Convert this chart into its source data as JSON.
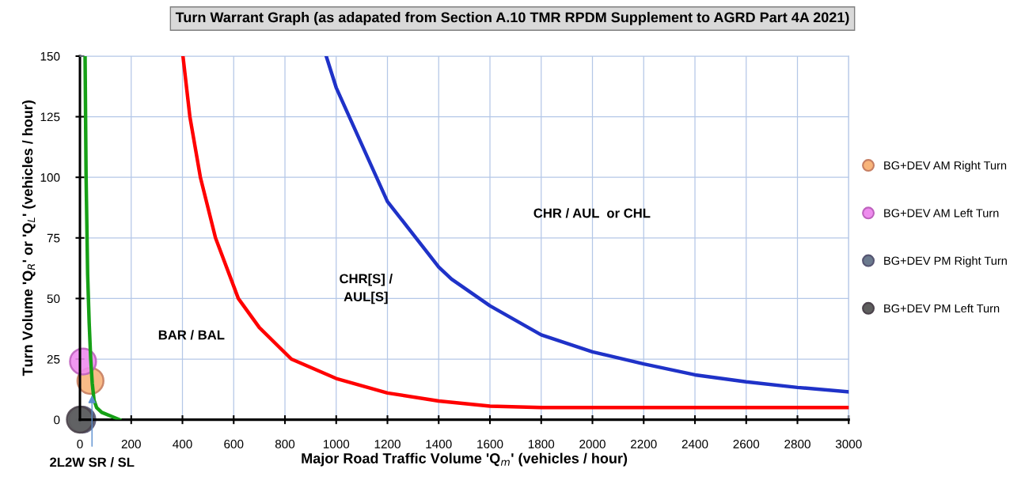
{
  "chart_data": {
    "type": "line",
    "title": "Turn Warrant Graph (as adapated from Section A.10 TMR RPDM Supplement to AGRD Part 4A 2021)",
    "xlabel": "Major Road Traffic Volume 'Q$_{m}$' (vehicles / hour)",
    "ylabel": "Turn Volume 'Q$_{R}$' or 'Q$_{L}$' (vehicles / hour)",
    "xlim": [
      0,
      3000
    ],
    "xticks": [
      0,
      200,
      400,
      600,
      800,
      1000,
      1200,
      1400,
      1600,
      1800,
      2000,
      2200,
      2400,
      2600,
      2800,
      3000
    ],
    "ylim": [
      0,
      150
    ],
    "yticks": [
      0,
      25,
      50,
      75,
      100,
      125,
      150
    ],
    "grid": true,
    "legend": "right",
    "line_style": "solid",
    "series": [
      {
        "color": "#16a016",
        "x": [
          20,
          24,
          30,
          36,
          42,
          48,
          55,
          65,
          85,
          120,
          155
        ],
        "values": [
          150,
          100,
          60,
          40,
          25,
          15,
          8,
          5,
          3,
          1.5,
          0
        ]
      },
      {
        "color": "#ff0000",
        "x": [
          402,
          429,
          470,
          529,
          618,
          700,
          825,
          1000,
          1200,
          1400,
          1600,
          1800,
          2000,
          2500,
          3000
        ],
        "values": [
          150,
          125,
          100,
          75,
          50,
          38,
          25,
          17,
          11,
          7.7,
          5.6,
          5,
          5,
          5,
          5
        ]
      },
      {
        "color": "#1f32c8",
        "x": [
          961,
          1000,
          1200,
          1400,
          1450,
          1600,
          1800,
          2000,
          2200,
          2400,
          2600,
          2800,
          3000
        ],
        "values": [
          150,
          137,
          90,
          63,
          58,
          47,
          35,
          28,
          23,
          18.5,
          15.6,
          13.3,
          11.5
        ]
      },
      {
        "type": "scatter",
        "name": "BG+DEV AM Right Turn",
        "color": "#f8b47a",
        "marker": "circle",
        "x": [
          41
        ],
        "values": [
          16
        ]
      },
      {
        "type": "scatter",
        "name": "BG+DEV AM Left Turn",
        "color": "#ee8cee",
        "marker": "circle",
        "x": [
          12
        ],
        "values": [
          24
        ]
      },
      {
        "type": "scatter",
        "name": "BG+DEV PM Right Turn",
        "color": "#6b7a8e",
        "marker": "circle",
        "x": [
          9
        ],
        "values": [
          0
        ]
      },
      {
        "type": "scatter",
        "name": "BG+DEV PM Left Turn",
        "color": "#5e5e5e",
        "marker": "circle",
        "x": [
          0
        ],
        "values": [
          0
        ]
      }
    ],
    "annotations": [
      "BAR / BAL",
      "CHR[S] /\nAUL[S]",
      "CHR / AUL  or CHL",
      {
        "text": "2L2W SR / SL",
        "x": 47,
        "y": 11
      }
    ]
  }
}
